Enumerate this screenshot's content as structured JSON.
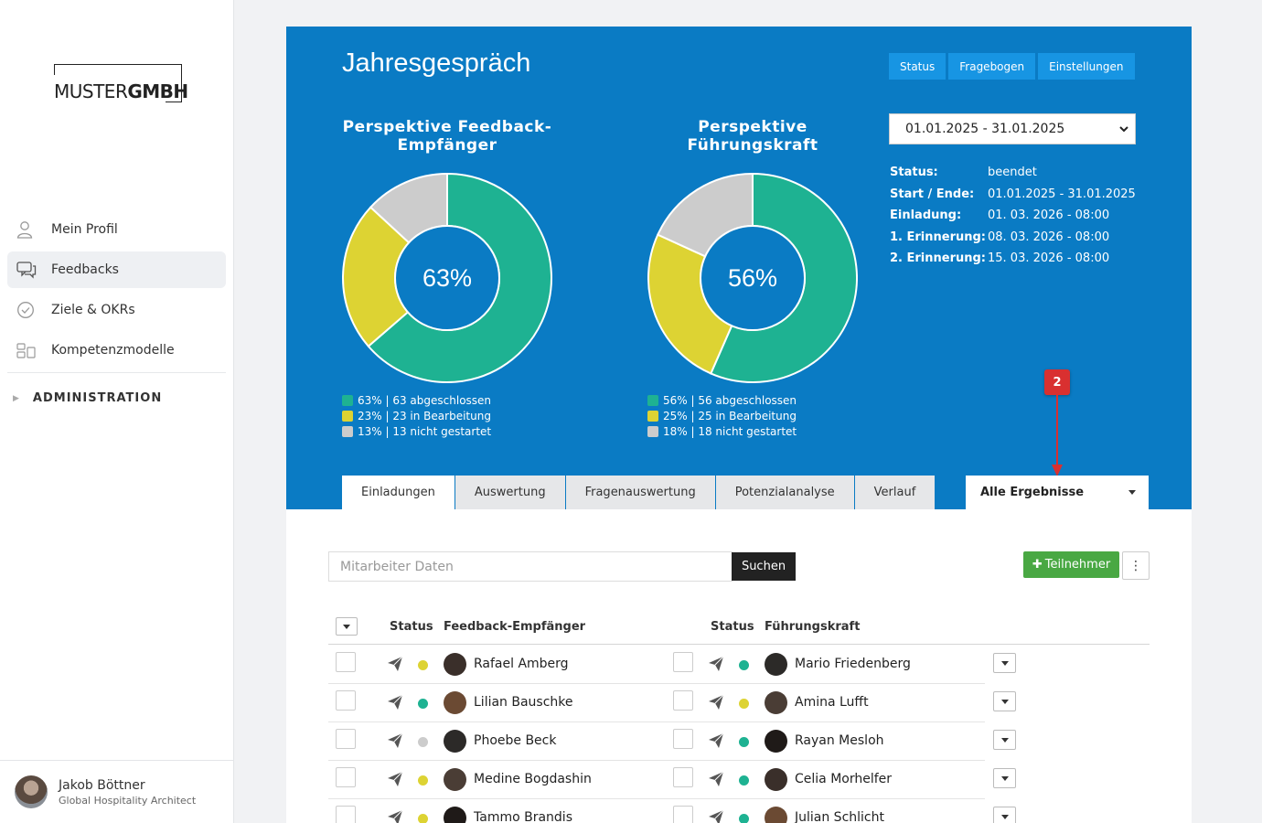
{
  "brand": {
    "logo_light": "MUSTER",
    "logo_bold": "GMBH"
  },
  "sidebar": {
    "items": [
      {
        "label": "Mein Profil",
        "icon": "user-icon"
      },
      {
        "label": "Feedbacks",
        "icon": "chat-icon"
      },
      {
        "label": "Ziele & OKRs",
        "icon": "check-circle-icon"
      },
      {
        "label": "Kompetenzmodelle",
        "icon": "model-icon"
      }
    ],
    "section": "ADMINISTRATION"
  },
  "user": {
    "name": "Jakob Böttner",
    "role": "Global Hospitality Architect"
  },
  "header": {
    "title": "Jahresgespräch",
    "buttons": [
      "Status",
      "Fragebogen",
      "Einstellungen"
    ]
  },
  "date_range": {
    "selected": "01.01.2025 - 31.01.2025"
  },
  "info": [
    {
      "key": "Status:",
      "value": "beendet"
    },
    {
      "key": "Start / Ende:",
      "value": "01.01.2025 - 31.01.2025"
    },
    {
      "key": "Einladung:",
      "value": "01. 03. 2026 - 08:00"
    },
    {
      "key": "1. Erinnerung:",
      "value": "08. 03. 2026 - 08:00"
    },
    {
      "key": "2. Erinnerung:",
      "value": "15. 03. 2026 - 08:00"
    }
  ],
  "colors": {
    "done": "#1eb292",
    "progress": "#ddd333",
    "not_started": "#cccccc",
    "hero": "#0a7bc4"
  },
  "chart_data": [
    {
      "type": "pie",
      "title_line1": "Perspektive Feedback-",
      "title_line2": "Empfänger",
      "center_label": "63%",
      "slices": [
        {
          "name": "abgeschlossen",
          "value": 63
        },
        {
          "name": "in Bearbeitung",
          "value": 23
        },
        {
          "name": "nicht gestartet",
          "value": 13
        }
      ],
      "legend": [
        "63% | 63 abgeschlossen",
        "23% | 23 in Bearbeitung",
        "13% | 13 nicht gestartet"
      ]
    },
    {
      "type": "pie",
      "title_line1": "Perspektive",
      "title_line2": "Führungskraft",
      "center_label": "56%",
      "slices": [
        {
          "name": "abgeschlossen",
          "value": 56
        },
        {
          "name": "in Bearbeitung",
          "value": 25
        },
        {
          "name": "nicht gestartet",
          "value": 18
        }
      ],
      "legend": [
        "56% | 56 abgeschlossen",
        "25% | 25 in Bearbeitung",
        "18% | 18 nicht gestartet"
      ]
    }
  ],
  "marker": "2",
  "tabs": [
    "Einladungen",
    "Auswertung",
    "Fragenauswertung",
    "Potenzialanalyse",
    "Verlauf"
  ],
  "results_filter": "Alle Ergebnisse",
  "search": {
    "placeholder": "Mitarbeiter Daten",
    "button": "Suchen"
  },
  "add_button": "Teilnehmer",
  "more_button": "⋮",
  "table": {
    "headers": {
      "status1": "Status",
      "recipient": "Feedback-Empfänger",
      "status2": "Status",
      "leader": "Führungskraft"
    },
    "rows": [
      {
        "recipient": "Rafael Amberg",
        "r_status": "progress",
        "leader": "Mario Friedenberg",
        "l_status": "done"
      },
      {
        "recipient": "Lilian Bauschke",
        "r_status": "done",
        "leader": "Amina Lufft",
        "l_status": "progress"
      },
      {
        "recipient": "Phoebe Beck",
        "r_status": "not_started",
        "leader": "Rayan Mesloh",
        "l_status": "done"
      },
      {
        "recipient": "Medine Bogdashin",
        "r_status": "progress",
        "leader": "Celia Morhelfer",
        "l_status": "done"
      },
      {
        "recipient": "Tammo Brandis",
        "r_status": "progress",
        "leader": "Julian Schlicht",
        "l_status": "done"
      }
    ]
  }
}
